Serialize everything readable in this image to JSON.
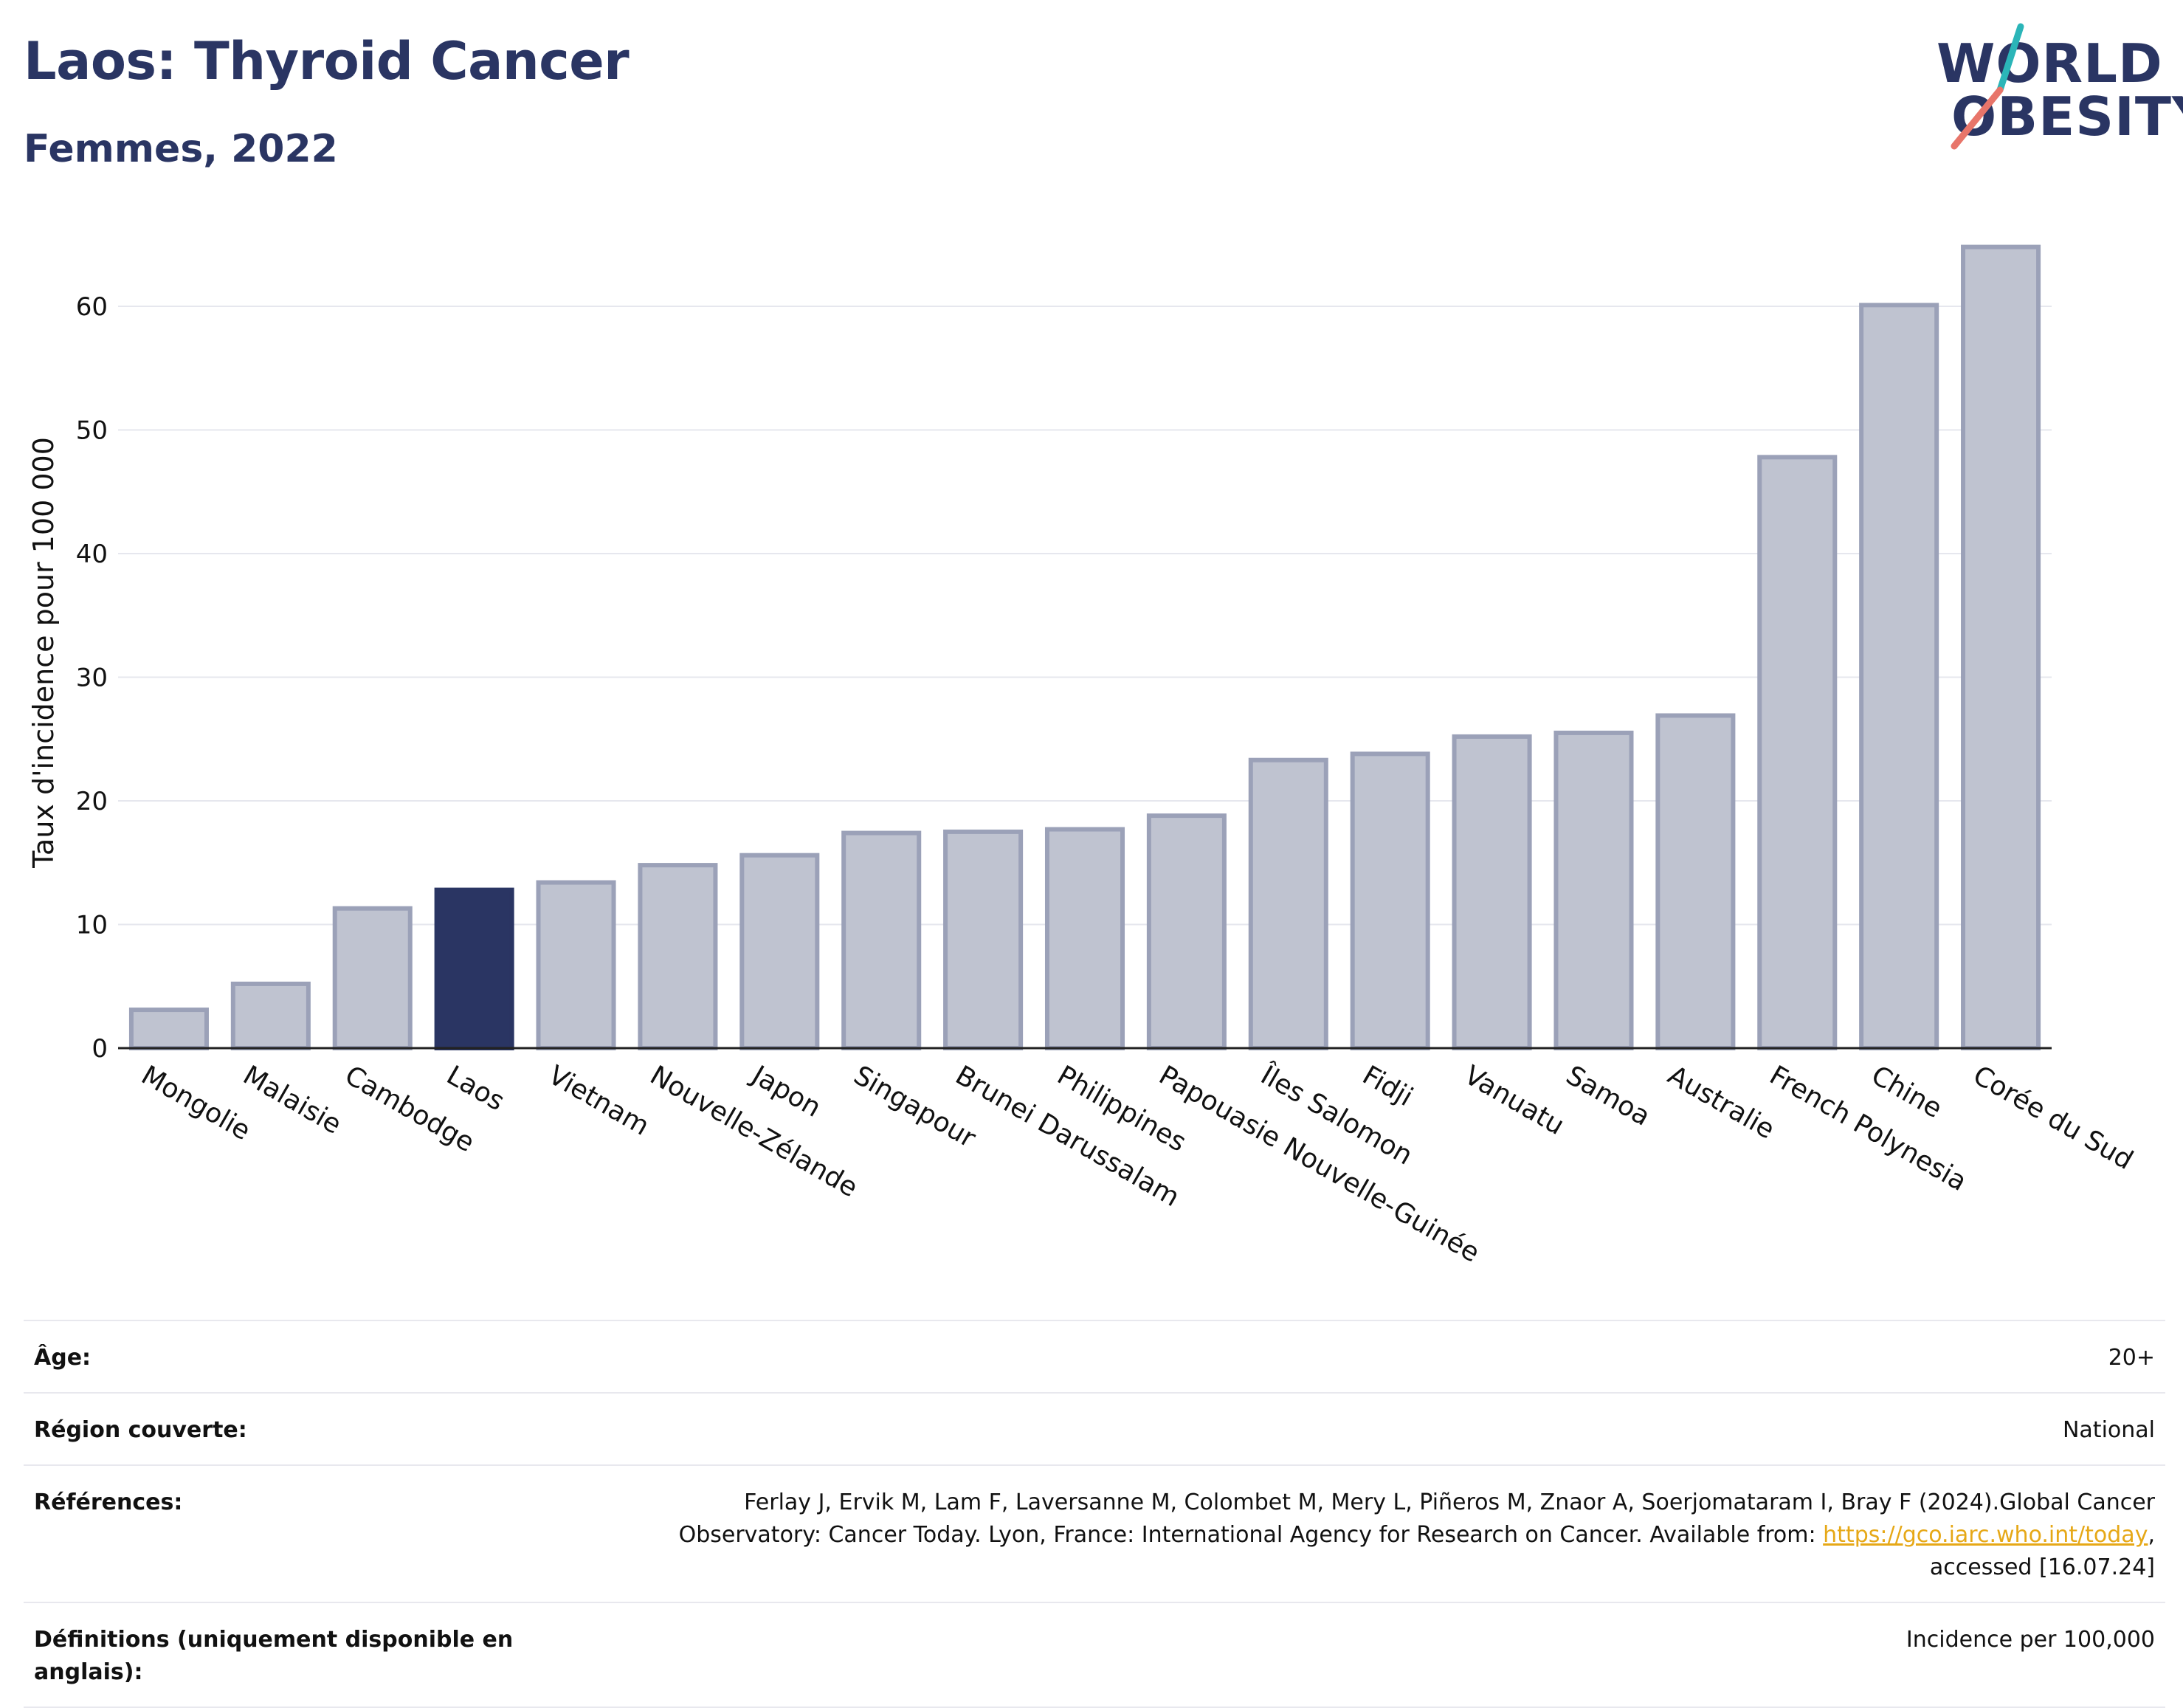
{
  "header": {
    "title": "Laos: Thyroid Cancer",
    "subtitle": "Femmes, 2022"
  },
  "logo": {
    "line1": "WORLD",
    "line2": "OBESITY",
    "accent_teal": "#2bb5b8",
    "accent_coral": "#e8756a"
  },
  "colors": {
    "bar": "#bfc3d0",
    "bar_border": "#9ba1b8",
    "highlight": "#2a3563",
    "text": "#2a3563"
  },
  "chart_data": {
    "type": "bar",
    "categories": [
      "Mongolie",
      "Malaisie",
      "Cambodge",
      "Laos",
      "Vietnam",
      "Nouvelle-Zélande",
      "Japon",
      "Singapour",
      "Brunei Darussalam",
      "Philippines",
      "Papouasie Nouvelle-Guinée",
      "Îles Salomon",
      "Fidji",
      "Vanuatu",
      "Samoa",
      "Australie",
      "French Polynesia",
      "Chine",
      "Corée du Sud"
    ],
    "values": [
      3.1,
      5.2,
      11.3,
      12.8,
      13.4,
      14.8,
      15.6,
      17.4,
      17.5,
      17.7,
      18.8,
      23.3,
      23.8,
      25.2,
      25.5,
      26.9,
      47.8,
      60.1,
      64.8
    ],
    "highlight": "Laos",
    "ylabel": "Taux d'incidence pour 100 000",
    "yticks": [
      0,
      10,
      20,
      30,
      40,
      50,
      60
    ],
    "ylim": [
      0,
      68
    ],
    "grid": true
  },
  "info": {
    "age_label": "Âge:",
    "age_value": "20+",
    "region_label": "Région couverte:",
    "region_value": "National",
    "refs_label": "Références:",
    "refs_line1": "Ferlay J, Ervik M, Lam F, Laversanne M, Colombet M, Mery L, Piñeros M, Znaor A, Soerjomataram I, Bray F (2024).Global Cancer",
    "refs_line2_pre": "Observatory: Cancer Today. Lyon, France: International Agency for Research on Cancer. Available from: ",
    "refs_link": "https://gco.iarc.who.int/today",
    "refs_line2_post": ",",
    "refs_line3": "accessed [16.07.24]",
    "defs_label": "Définitions (uniquement disponible en anglais):",
    "defs_value": "Incidence per 100,000"
  }
}
